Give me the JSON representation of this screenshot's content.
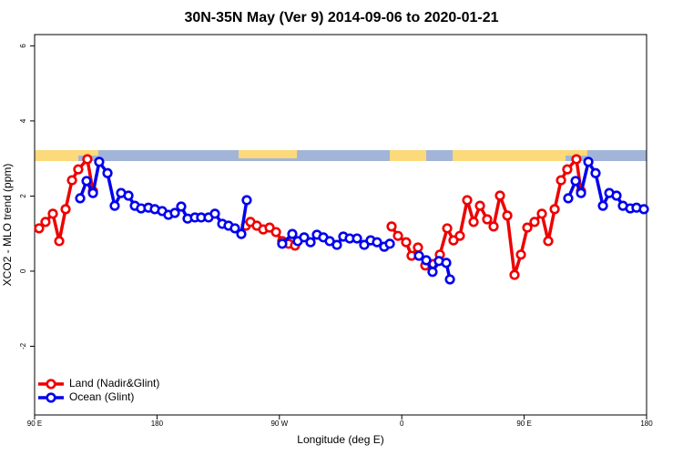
{
  "chart_data": {
    "type": "line",
    "title": "30N-35N May (Ver 9)   2014-09-06 to 2020-01-21",
    "x_label": "Longitude (deg E)",
    "y_label": "XCO2 - MLO trend (ppm)",
    "xlim": [
      90,
      540
    ],
    "xticks": [
      {
        "value": 90,
        "label": "90 E"
      },
      {
        "value": 180,
        "label": "180"
      },
      {
        "value": 270,
        "label": "90 W"
      },
      {
        "value": 360,
        "label": "0"
      },
      {
        "value": 450,
        "label": "90 E"
      },
      {
        "value": 540,
        "label": "180"
      }
    ],
    "ylim": [
      -3.83,
      6.3
    ],
    "yticks": [
      -2,
      0,
      2,
      4,
      6
    ],
    "legend": "lower left",
    "series": [
      {
        "name": "Land (Nadir&Glint)",
        "color": "#ee0000",
        "x": [
          93.3,
          98.0,
          103.4,
          108.1,
          112.8,
          117.5,
          122.1,
          128.8,
          132.9,
          null,
          245.4,
          248.7,
          253.4,
          258.1,
          262.8,
          267.5,
          272.1,
          276.8,
          281.5,
          null,
          352.5,
          357.2,
          363.2,
          367.2,
          371.9,
          377.3,
          383.3,
          388.0,
          393.4,
          398.0,
          402.7,
          408.1,
          412.8,
          417.5,
          422.8,
          427.5,
          432.2,
          437.6,
          442.9,
          447.6,
          452.3,
          457.6,
          463.0,
          467.7,
          472.4,
          477.1,
          481.7,
          488.4,
          491.8
        ],
        "values": [
          1.14,
          1.31,
          1.53,
          0.8,
          1.65,
          2.42,
          2.71,
          2.98,
          2.13,
          null,
          1.21,
          1.31,
          1.21,
          1.11,
          1.16,
          1.04,
          0.8,
          0.73,
          0.68,
          null,
          1.19,
          0.94,
          0.77,
          0.41,
          0.63,
          0.15,
          0.19,
          0.44,
          1.14,
          0.82,
          0.94,
          1.89,
          1.31,
          1.74,
          1.38,
          1.19,
          2.01,
          1.48,
          -0.1,
          0.44,
          1.16,
          1.31,
          1.53,
          0.8,
          1.65,
          2.42,
          2.71,
          2.98,
          2.13
        ]
      },
      {
        "name": "Ocean (Glint)",
        "color": "#0000ee",
        "x": [
          123.5,
          128.2,
          132.9,
          137.5,
          143.6,
          148.9,
          153.6,
          159.0,
          163.7,
          168.3,
          173.7,
          178.4,
          183.8,
          188.4,
          193.1,
          197.8,
          202.5,
          207.9,
          212.5,
          217.9,
          222.6,
          228.0,
          232.6,
          237.3,
          242.0,
          246.0,
          null,
          272.1,
          279.5,
          283.5,
          288.2,
          292.9,
          297.6,
          302.3,
          307.0,
          312.3,
          317.0,
          321.7,
          327.1,
          332.4,
          337.1,
          341.8,
          347.1,
          351.2,
          null,
          372.6,
          378.0,
          382.6,
          387.3,
          392.7,
          395.4,
          null,
          482.4,
          487.8,
          491.8,
          497.2,
          502.5,
          507.9,
          512.6,
          517.9,
          522.6,
          528.0,
          532.6,
          538.0
        ],
        "values": [
          1.94,
          2.4,
          2.08,
          2.91,
          2.61,
          1.74,
          2.08,
          2.01,
          1.74,
          1.67,
          1.69,
          1.65,
          1.6,
          1.5,
          1.55,
          1.72,
          1.4,
          1.43,
          1.43,
          1.43,
          1.53,
          1.26,
          1.21,
          1.14,
          0.99,
          1.89,
          null,
          0.73,
          0.99,
          0.8,
          0.9,
          0.77,
          0.97,
          0.9,
          0.8,
          0.7,
          0.92,
          0.87,
          0.87,
          0.7,
          0.82,
          0.77,
          0.65,
          0.73,
          null,
          0.41,
          0.29,
          -0.02,
          0.27,
          0.22,
          -0.22,
          null,
          1.94,
          2.4,
          2.08,
          2.91,
          2.61,
          1.74,
          2.08,
          2.01,
          1.74,
          1.67,
          1.69,
          1.65
        ]
      }
    ]
  }
}
